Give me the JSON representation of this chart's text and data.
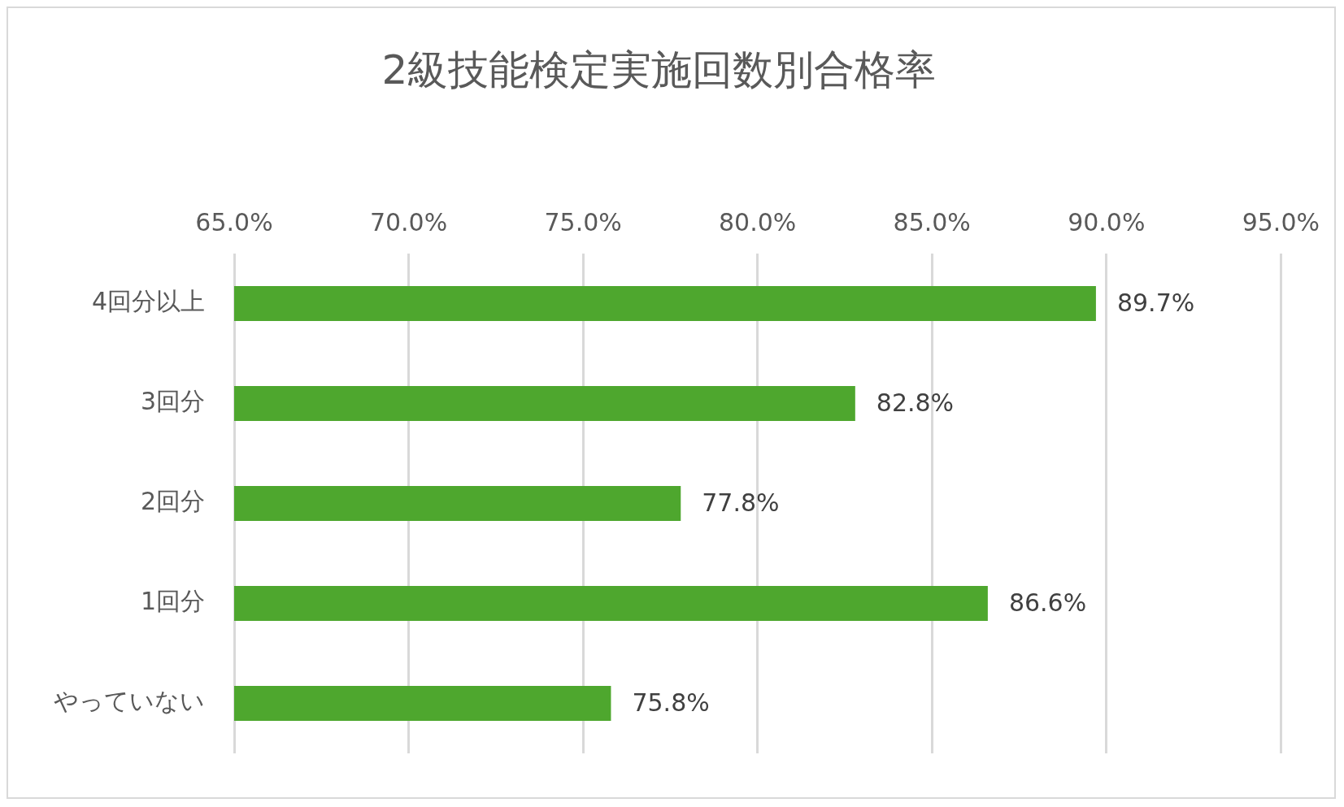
{
  "chart_data": {
    "type": "bar",
    "orientation": "horizontal",
    "title": "2級技能検定実施回数別合格率",
    "categories": [
      "4回分以上",
      "3回分",
      "2回分",
      "1回分",
      "やっていない"
    ],
    "values": [
      89.7,
      82.8,
      77.8,
      86.6,
      75.8
    ],
    "value_labels": [
      "89.7%",
      "82.8%",
      "77.8%",
      "86.6%",
      "75.8%"
    ],
    "color": "#4ea72e",
    "xlim": [
      65,
      95
    ],
    "xticks": [
      {
        "value": 65,
        "label": "65.0%"
      },
      {
        "value": 70,
        "label": "70.0%"
      },
      {
        "value": 75,
        "label": "75.0%"
      },
      {
        "value": 80,
        "label": "80.0%"
      },
      {
        "value": 85,
        "label": "85.0%"
      },
      {
        "value": 90,
        "label": "90.0%"
      },
      {
        "value": 95,
        "label": "95.0%"
      }
    ],
    "grid": "x",
    "legend": false
  }
}
